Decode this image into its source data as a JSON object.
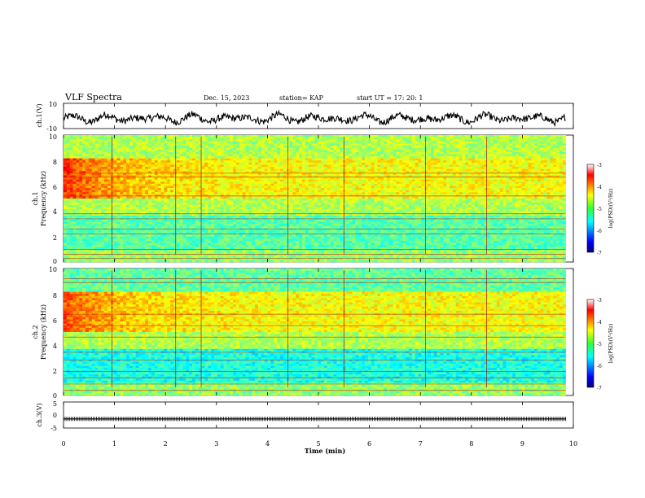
{
  "header": {
    "title": "VLF Spectra",
    "date": "Dec. 15, 2023",
    "station": "station= KAP",
    "start": "start  UT  =   17: 20: 1"
  },
  "chart_data": [
    {
      "name": "ch1-waveform",
      "type": "line",
      "ylabel": "ch.1(V)",
      "ylim": [
        -10,
        10
      ],
      "yticks": [
        "10",
        "-10"
      ],
      "xlim": [
        0,
        10
      ],
      "series_extent_min": [
        0,
        9.85
      ],
      "mean": -2,
      "amplitude_range": [
        -8,
        6
      ]
    },
    {
      "name": "ch1-spectrogram",
      "type": "heatmap",
      "ylabel": "ch.1\nFrequency  (kHz)",
      "ylim": [
        0,
        10
      ],
      "yticks": [
        "0",
        "2",
        "4",
        "6",
        "8",
        "10"
      ],
      "xlim": [
        0,
        10
      ],
      "colorbar": {
        "label": "log(PSD)(V²/Hz)",
        "ticks": [
          "-3",
          "-4",
          "-5",
          "-6",
          "-7"
        ],
        "range": [
          -7,
          -3
        ]
      },
      "notes": "strongest power near 5-8 kHz during first minute; weak band 1-3.5 kHz"
    },
    {
      "name": "ch2-spectrogram",
      "type": "heatmap",
      "ylabel": "ch.2\nFrequency  (kHz)",
      "ylim": [
        0,
        10
      ],
      "yticks": [
        "0",
        "2",
        "4",
        "6",
        "8",
        "10"
      ],
      "xlim": [
        0,
        10
      ],
      "colorbar": {
        "label": "log(PSD)(V²/Hz)",
        "ticks": [
          "-3",
          "-4",
          "-5",
          "-6",
          "-7"
        ],
        "range": [
          -7,
          -3
        ]
      }
    },
    {
      "name": "ch3-waveform",
      "type": "line",
      "ylabel": "ch.3(V)",
      "ylim": [
        -5,
        5
      ],
      "yticks": [
        "5",
        "0",
        "-5"
      ],
      "xlim": [
        0,
        10
      ],
      "series_extent_min": [
        0,
        9.85
      ],
      "level": -1.5
    }
  ],
  "xaxis": {
    "label": "Time  (min)",
    "ticks": [
      "0",
      "1",
      "2",
      "3",
      "4",
      "5",
      "6",
      "7",
      "8",
      "9",
      "10"
    ]
  }
}
